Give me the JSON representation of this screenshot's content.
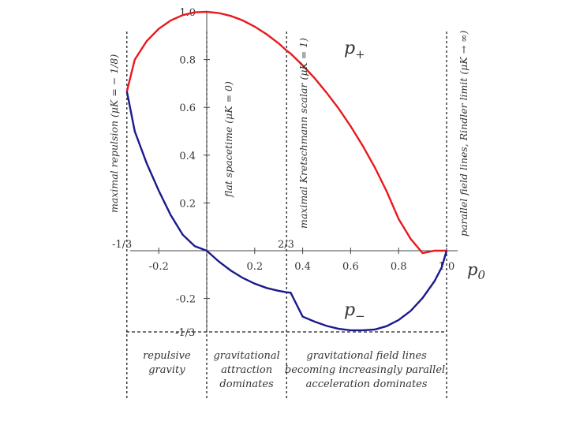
{
  "chart_data": {
    "type": "line",
    "xlabel": "p0",
    "x_ticks": [
      "-0.2",
      "0.2",
      "0.4",
      "0.6",
      "0.8",
      "1.0"
    ],
    "y_ticks": [
      "0.2",
      "0.4",
      "0.6",
      "0.8",
      "1.0",
      "-0.2"
    ],
    "xlim": [
      -0.333,
      1.0
    ],
    "ylim": [
      -0.333,
      1.0
    ],
    "special_ticks": {
      "x_left": "-1/3",
      "x_mid": "2/3",
      "y_bottom": "-1/3"
    },
    "series": [
      {
        "name": "p+",
        "color": "#e8191e",
        "x": [
          -0.333,
          -0.3,
          -0.25,
          -0.2,
          -0.15,
          -0.1,
          -0.05,
          0.0,
          0.05,
          0.1,
          0.15,
          0.2,
          0.25,
          0.3,
          0.333,
          0.35,
          0.4,
          0.45,
          0.5,
          0.55,
          0.6,
          0.65,
          0.7,
          0.75,
          0.8,
          0.85,
          0.9,
          0.95,
          0.98,
          1.0
        ],
        "y": [
          0.667,
          0.8,
          0.878,
          0.929,
          0.964,
          0.986,
          0.998,
          1.0,
          0.995,
          0.983,
          0.964,
          0.938,
          0.906,
          0.868,
          0.838,
          0.825,
          0.776,
          0.722,
          0.661,
          0.595,
          0.521,
          0.44,
          0.35,
          0.249,
          0.133,
          0.05,
          -0.01,
          0.0,
          0.0,
          0.0
        ]
      },
      {
        "name": "p−",
        "color": "#1a1a8c",
        "x": [
          -0.333,
          -0.3,
          -0.25,
          -0.2,
          -0.15,
          -0.1,
          -0.05,
          0.0,
          0.05,
          0.1,
          0.15,
          0.2,
          0.25,
          0.3,
          0.333,
          0.35,
          0.4,
          0.45,
          0.5,
          0.55,
          0.6,
          0.65,
          0.7,
          0.75,
          0.8,
          0.85,
          0.9,
          0.95,
          0.98,
          1.0
        ],
        "y": [
          0.667,
          0.5,
          0.365,
          0.251,
          0.149,
          0.067,
          0.019,
          0.0,
          -0.045,
          -0.083,
          -0.114,
          -0.138,
          -0.156,
          -0.168,
          -0.174,
          -0.176,
          -0.276,
          -0.297,
          -0.315,
          -0.327,
          -0.333,
          -0.333,
          -0.33,
          -0.316,
          -0.29,
          -0.252,
          -0.198,
          -0.127,
          -0.069,
          0.0
        ]
      }
    ],
    "vertical_lines": [
      {
        "x": -0.333,
        "label": "maximal repulsion (μK = − 1/8)"
      },
      {
        "x": 0.0,
        "label": "flat spacetime (μK = 0)"
      },
      {
        "x": 0.333,
        "label": "maximal Kretschmann scalar (μK = 1)"
      },
      {
        "x": 1.0,
        "label": "parallel field lines, Rindler limit (μK → ∞)"
      }
    ],
    "regions": [
      [
        "repulsive",
        "gravity"
      ],
      [
        "gravitational",
        "attraction",
        "dominates"
      ],
      [
        "gravitational field lines",
        "becoming increasingly parallel,",
        "acceleration dominates"
      ]
    ]
  }
}
